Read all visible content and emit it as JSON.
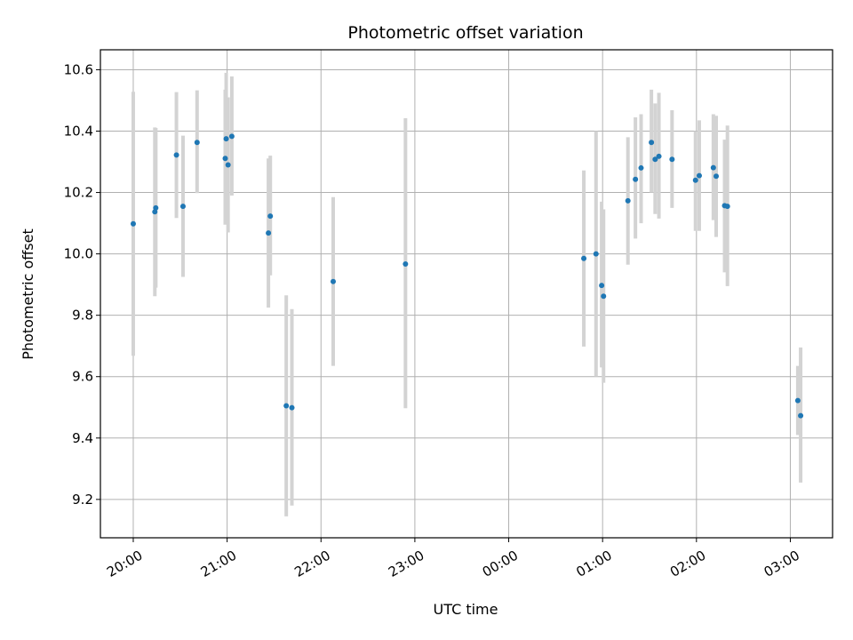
{
  "chart_data": {
    "type": "scatter",
    "title": "Photometric offset variation",
    "xlabel": "UTC time",
    "ylabel": "Photometric offset",
    "x_unit": "hours",
    "xlim": [
      19.65,
      27.45
    ],
    "ylim": [
      9.075,
      10.665
    ],
    "grid": true,
    "legend": "none",
    "x_ticks": [
      {
        "value": 20,
        "label": "20:00"
      },
      {
        "value": 21,
        "label": "21:00"
      },
      {
        "value": 22,
        "label": "22:00"
      },
      {
        "value": 23,
        "label": "23:00"
      },
      {
        "value": 24,
        "label": "00:00"
      },
      {
        "value": 25,
        "label": "01:00"
      },
      {
        "value": 26,
        "label": "02:00"
      },
      {
        "value": 27,
        "label": "03:00"
      }
    ],
    "y_ticks": [
      {
        "value": 9.2,
        "label": "9.2"
      },
      {
        "value": 9.4,
        "label": "9.4"
      },
      {
        "value": 9.6,
        "label": "9.6"
      },
      {
        "value": 9.8,
        "label": "9.8"
      },
      {
        "value": 10.0,
        "label": "10.0"
      },
      {
        "value": 10.2,
        "label": "10.2"
      },
      {
        "value": 10.4,
        "label": "10.4"
      },
      {
        "value": 10.6,
        "label": "10.6"
      }
    ],
    "colors": {
      "point": "#1f77b4",
      "errorbar": "#d3d3d3",
      "grid": "#b0b0b0"
    },
    "points": [
      {
        "x": 20.0,
        "y": 10.098,
        "lo": 9.668,
        "hi": 10.528
      },
      {
        "x": 20.23,
        "y": 10.137,
        "lo": 9.862,
        "hi": 10.412
      },
      {
        "x": 20.24,
        "y": 10.15,
        "lo": 9.89,
        "hi": 10.41
      },
      {
        "x": 20.46,
        "y": 10.322,
        "lo": 10.117,
        "hi": 10.527
      },
      {
        "x": 20.53,
        "y": 10.155,
        "lo": 9.925,
        "hi": 10.385
      },
      {
        "x": 20.68,
        "y": 10.363,
        "lo": 10.198,
        "hi": 10.533
      },
      {
        "x": 20.98,
        "y": 10.311,
        "lo": 10.095,
        "hi": 10.535
      },
      {
        "x": 20.99,
        "y": 10.375,
        "lo": 10.17,
        "hi": 10.59
      },
      {
        "x": 21.01,
        "y": 10.29,
        "lo": 10.07,
        "hi": 10.51
      },
      {
        "x": 21.05,
        "y": 10.383,
        "lo": 10.19,
        "hi": 10.578
      },
      {
        "x": 21.44,
        "y": 10.068,
        "lo": 9.825,
        "hi": 10.311
      },
      {
        "x": 21.46,
        "y": 10.123,
        "lo": 9.93,
        "hi": 10.32
      },
      {
        "x": 21.63,
        "y": 9.505,
        "lo": 9.145,
        "hi": 9.865
      },
      {
        "x": 21.69,
        "y": 9.499,
        "lo": 9.18,
        "hi": 9.82
      },
      {
        "x": 22.13,
        "y": 9.91,
        "lo": 9.635,
        "hi": 10.185
      },
      {
        "x": 22.9,
        "y": 9.967,
        "lo": 9.497,
        "hi": 10.442
      },
      {
        "x": 24.8,
        "y": 9.985,
        "lo": 9.698,
        "hi": 10.272
      },
      {
        "x": 24.93,
        "y": 10.0,
        "lo": 9.6,
        "hi": 10.4
      },
      {
        "x": 24.99,
        "y": 9.897,
        "lo": 9.63,
        "hi": 10.17
      },
      {
        "x": 25.01,
        "y": 9.862,
        "lo": 9.58,
        "hi": 10.145
      },
      {
        "x": 25.27,
        "y": 10.173,
        "lo": 9.965,
        "hi": 10.38
      },
      {
        "x": 25.35,
        "y": 10.243,
        "lo": 10.05,
        "hi": 10.445
      },
      {
        "x": 25.41,
        "y": 10.28,
        "lo": 10.1,
        "hi": 10.455
      },
      {
        "x": 25.52,
        "y": 10.363,
        "lo": 10.2,
        "hi": 10.535
      },
      {
        "x": 25.56,
        "y": 10.308,
        "lo": 10.13,
        "hi": 10.49
      },
      {
        "x": 25.6,
        "y": 10.318,
        "lo": 10.115,
        "hi": 10.525
      },
      {
        "x": 25.74,
        "y": 10.308,
        "lo": 10.15,
        "hi": 10.468
      },
      {
        "x": 25.99,
        "y": 10.24,
        "lo": 10.075,
        "hi": 10.4
      },
      {
        "x": 26.03,
        "y": 10.255,
        "lo": 10.075,
        "hi": 10.435
      },
      {
        "x": 26.18,
        "y": 10.281,
        "lo": 10.11,
        "hi": 10.455
      },
      {
        "x": 26.21,
        "y": 10.253,
        "lo": 10.055,
        "hi": 10.45
      },
      {
        "x": 26.3,
        "y": 10.157,
        "lo": 9.94,
        "hi": 10.372
      },
      {
        "x": 26.33,
        "y": 10.155,
        "lo": 9.895,
        "hi": 10.418
      },
      {
        "x": 27.08,
        "y": 9.522,
        "lo": 9.41,
        "hi": 9.635
      },
      {
        "x": 27.11,
        "y": 9.473,
        "lo": 9.255,
        "hi": 9.695
      }
    ]
  }
}
